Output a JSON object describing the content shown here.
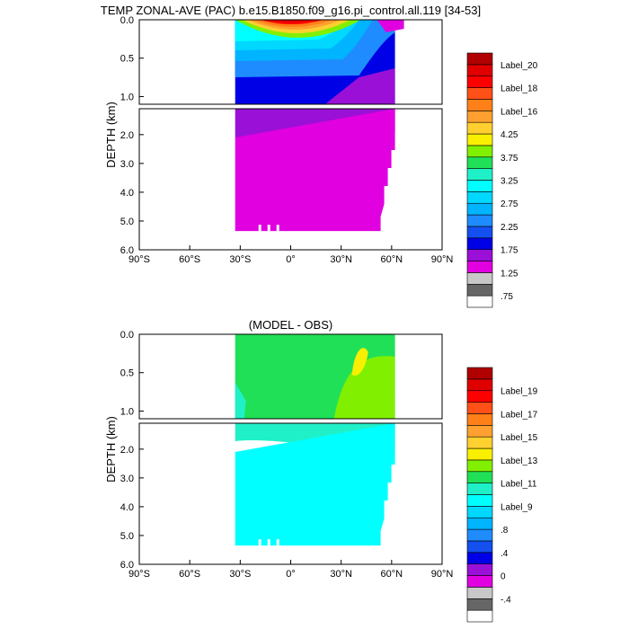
{
  "top_title": "TEMP ZONAL-AVE (PAC) b.e15.B1850.f09_g16.pi_control.all.119 [34-53]",
  "bottom_title": "(MODEL - OBS)",
  "ylabel": "DEPTH (km)",
  "colors": [
    "#ffffff",
    "#666666",
    "#c8c8c8",
    "#e000e0",
    "#9a10d6",
    "#0000e6",
    "#1450f0",
    "#1e8cff",
    "#00b4ff",
    "#00d8ff",
    "#00ffff",
    "#20f0c8",
    "#20e058",
    "#80f000",
    "#f8f000",
    "#ffd030",
    "#ffa030",
    "#ff8018",
    "#ff5018",
    "#ff0000",
    "#e00000",
    "#b00000"
  ],
  "chart_data": [
    {
      "type": "heatmap",
      "title": "TEMP ZONAL-AVE (PAC) b.e15.B1850.f09_g16.pi_control.all.119 [34-53]",
      "xlabel": "",
      "ylabel": "DEPTH (km)",
      "xlim": [
        -90,
        90
      ],
      "x_ticks": [
        "90°S",
        "60°S",
        "30°S",
        "0°",
        "30°N",
        "60°N",
        "90°N"
      ],
      "y_ticks_upper": [
        "0.0",
        "0.5",
        "1.0"
      ],
      "y_ticks_lower": [
        "2.0",
        "3.0",
        "4.0",
        "5.0",
        "6.0"
      ],
      "ylim_upper_km": [
        0,
        1.1
      ],
      "ylim_lower_km": [
        1.1,
        6.0
      ],
      "data_extent": {
        "lat": [
          -33,
          62
        ],
        "max_depth_km": 5.35
      },
      "colorbar_labels": [
        "Label_20",
        "Label_18",
        "Label_16",
        "4.25",
        "3.75",
        "3.25",
        "2.75",
        "2.25",
        "1.75",
        "1.25",
        ".75"
      ],
      "colorbar_label_slots": [
        20,
        18,
        16,
        14,
        12,
        10,
        8,
        6,
        4,
        2,
        0
      ],
      "dominant_levels": {
        "surface_tropics": 20,
        "upper_ocean": 7,
        "intermediate": 5,
        "deep": 3,
        "abyss": 2
      }
    },
    {
      "type": "heatmap",
      "title": "(MODEL - OBS)",
      "xlabel": "",
      "ylabel": "DEPTH (km)",
      "xlim": [
        -90,
        90
      ],
      "x_ticks": [
        "90°S",
        "60°S",
        "30°S",
        "0°",
        "30°N",
        "60°N",
        "90°N"
      ],
      "y_ticks_upper": [
        "0.0",
        "0.5",
        "1.0"
      ],
      "y_ticks_lower": [
        "2.0",
        "3.0",
        "4.0",
        "5.0",
        "6.0"
      ],
      "ylim_upper_km": [
        0,
        1.1
      ],
      "ylim_lower_km": [
        1.1,
        6.0
      ],
      "data_extent": {
        "lat": [
          -33,
          62
        ],
        "max_depth_km": 5.35
      },
      "colorbar_labels": [
        "Label_19",
        "Label_17",
        "Label_15",
        "Label_13",
        "Label_11",
        "Label_9",
        ".8",
        ".4",
        "0",
        "-.4"
      ],
      "colorbar_label_slots": [
        19,
        17,
        15,
        13,
        11,
        9,
        7,
        5,
        3,
        1
      ],
      "dominant_levels": {
        "upper_ocean": 12,
        "subtropical_north": 13,
        "intermediate": 11,
        "deep": 10
      }
    }
  ]
}
